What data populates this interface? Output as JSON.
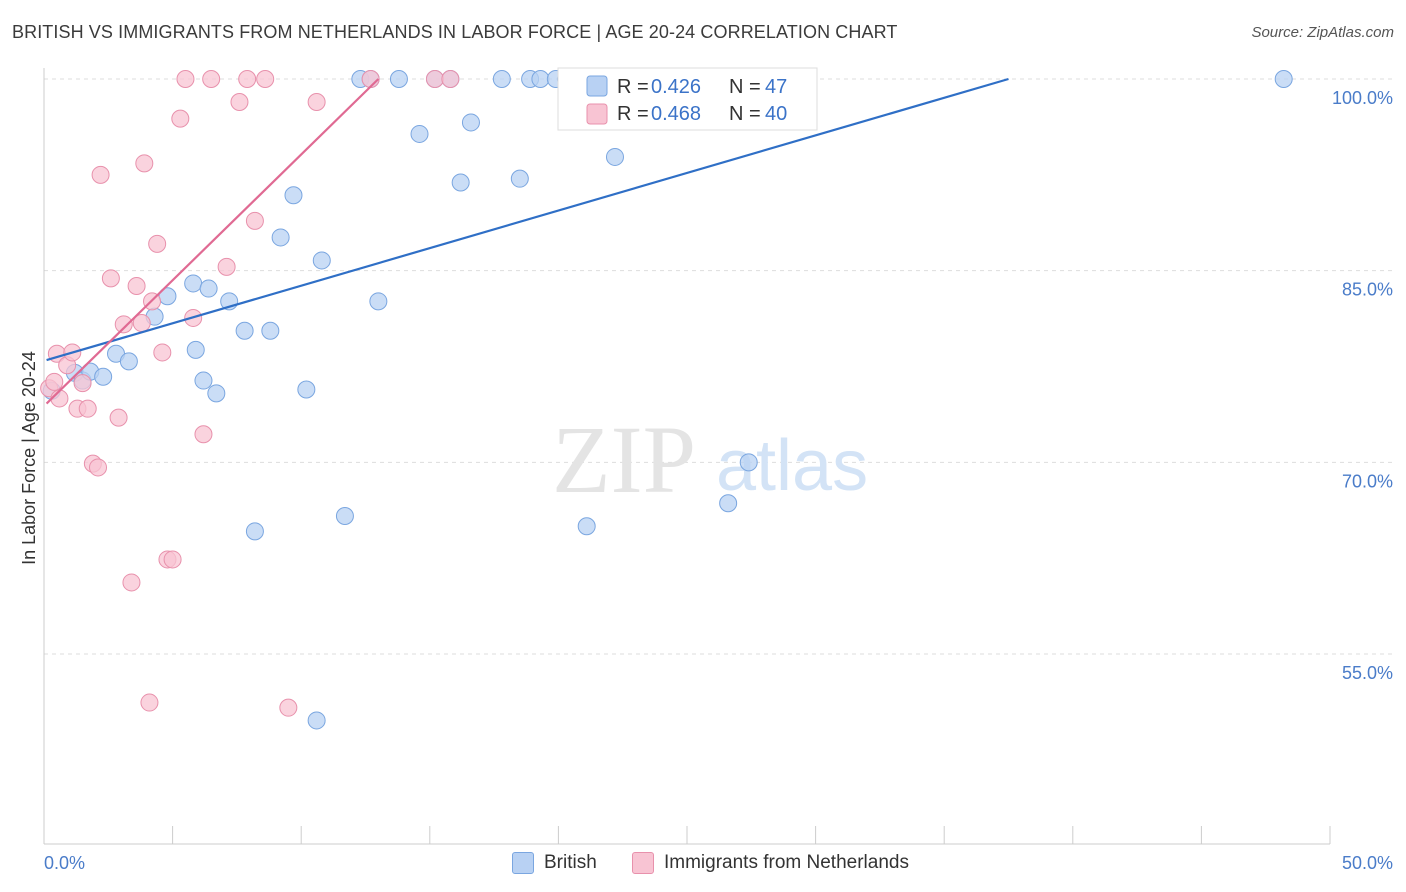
{
  "header": {
    "title": "BRITISH VS IMMIGRANTS FROM NETHERLANDS IN LABOR FORCE | AGE 20-24 CORRELATION CHART",
    "source": "Source: ZipAtlas.com"
  },
  "watermark": {
    "zip": "ZIP",
    "atlas": "atlas"
  },
  "legend_box": {
    "rows": [
      {
        "r_label": "R = ",
        "r_value": "0.426",
        "n_label": "N = ",
        "n_value": "47"
      },
      {
        "r_label": "R = ",
        "r_value": "0.468",
        "n_label": "N = ",
        "n_value": "40"
      }
    ]
  },
  "bottom_legend": {
    "british": "British",
    "netherlands": "Immigrants from Netherlands"
  },
  "colors": {
    "british_fill": "#b8d1f3",
    "british_stroke": "#7aa6e0",
    "british_line": "#2f6fc6",
    "nl_fill": "#f8c4d3",
    "nl_stroke": "#e891ac",
    "nl_line": "#e06a93",
    "tick_text": "#4a7cc9",
    "grid": "#dddddd"
  },
  "chart_data": {
    "type": "scatter",
    "title": "BRITISH VS IMMIGRANTS FROM NETHERLANDS IN LABOR FORCE | AGE 20-24 CORRELATION CHART",
    "xlabel": "",
    "ylabel": "In Labor Force | Age 20-24",
    "xlim": [
      0,
      50
    ],
    "ylim": [
      38,
      101.5
    ],
    "x_tick_labels": [
      "0.0%",
      "50.0%"
    ],
    "y_ticks": [
      55,
      70,
      85,
      100
    ],
    "y_tick_labels": [
      "55.0%",
      "70.0%",
      "85.0%",
      "100.0%"
    ],
    "grid": true,
    "legend": "top-center",
    "series": [
      {
        "name": "British",
        "r": 0.426,
        "n": 47,
        "points": [
          [
            0.3,
            75.6
          ],
          [
            1.2,
            77.0
          ],
          [
            1.5,
            76.4
          ],
          [
            1.8,
            77.1
          ],
          [
            2.3,
            76.7
          ],
          [
            2.8,
            78.5
          ],
          [
            3.3,
            77.9
          ],
          [
            4.3,
            81.4
          ],
          [
            4.8,
            83.0
          ],
          [
            5.9,
            78.8
          ],
          [
            6.2,
            76.4
          ],
          [
            5.8,
            84.0
          ],
          [
            6.4,
            83.6
          ],
          [
            6.7,
            75.4
          ],
          [
            7.2,
            82.6
          ],
          [
            7.8,
            80.3
          ],
          [
            8.2,
            64.6
          ],
          [
            8.8,
            80.3
          ],
          [
            9.2,
            87.6
          ],
          [
            9.7,
            90.9
          ],
          [
            10.2,
            75.7
          ],
          [
            10.6,
            49.8
          ],
          [
            10.8,
            85.8
          ],
          [
            11.7,
            65.8
          ],
          [
            12.3,
            100.0
          ],
          [
            12.7,
            100.0
          ],
          [
            13.0,
            82.6
          ],
          [
            13.8,
            100.0
          ],
          [
            14.6,
            95.7
          ],
          [
            15.2,
            100.0
          ],
          [
            15.8,
            100.0
          ],
          [
            16.2,
            91.9
          ],
          [
            16.6,
            96.6
          ],
          [
            17.8,
            100.0
          ],
          [
            18.5,
            92.2
          ],
          [
            18.9,
            100.0
          ],
          [
            19.3,
            100.0
          ],
          [
            19.9,
            100.0
          ],
          [
            20.3,
            100.0
          ],
          [
            20.8,
            100.0
          ],
          [
            21.1,
            65.0
          ],
          [
            21.8,
            100.0
          ],
          [
            22.2,
            93.9
          ],
          [
            22.9,
            100.0
          ],
          [
            26.6,
            66.8
          ],
          [
            27.4,
            70.0
          ],
          [
            48.2,
            100.0
          ]
        ],
        "trend": {
          "x": [
            0.1,
            37.5
          ],
          "y": [
            78.0,
            100.0
          ]
        }
      },
      {
        "name": "Immigrants from Netherlands",
        "r": 0.468,
        "n": 40,
        "points": [
          [
            0.2,
            75.8
          ],
          [
            0.4,
            76.3
          ],
          [
            0.5,
            78.5
          ],
          [
            0.6,
            75.0
          ],
          [
            0.9,
            77.6
          ],
          [
            1.1,
            78.6
          ],
          [
            1.3,
            74.2
          ],
          [
            1.5,
            76.2
          ],
          [
            1.7,
            74.2
          ],
          [
            1.9,
            69.9
          ],
          [
            2.1,
            69.6
          ],
          [
            2.2,
            92.5
          ],
          [
            2.6,
            84.4
          ],
          [
            2.9,
            73.5
          ],
          [
            3.1,
            80.8
          ],
          [
            3.4,
            60.6
          ],
          [
            3.6,
            83.8
          ],
          [
            3.8,
            80.9
          ],
          [
            3.9,
            93.4
          ],
          [
            4.1,
            51.2
          ],
          [
            4.2,
            82.6
          ],
          [
            4.4,
            87.1
          ],
          [
            4.6,
            78.6
          ],
          [
            4.8,
            62.4
          ],
          [
            5.0,
            62.4
          ],
          [
            5.3,
            96.9
          ],
          [
            5.5,
            100.0
          ],
          [
            5.8,
            81.3
          ],
          [
            6.2,
            72.2
          ],
          [
            6.5,
            100.0
          ],
          [
            7.1,
            85.3
          ],
          [
            7.6,
            98.2
          ],
          [
            7.9,
            100.0
          ],
          [
            8.2,
            88.9
          ],
          [
            8.6,
            100.0
          ],
          [
            9.5,
            50.8
          ],
          [
            10.6,
            98.2
          ],
          [
            12.7,
            100.0
          ],
          [
            15.2,
            100.0
          ],
          [
            15.8,
            100.0
          ]
        ],
        "trend": {
          "x": [
            0.1,
            13.0
          ],
          "y": [
            74.6,
            100.0
          ]
        }
      }
    ]
  }
}
